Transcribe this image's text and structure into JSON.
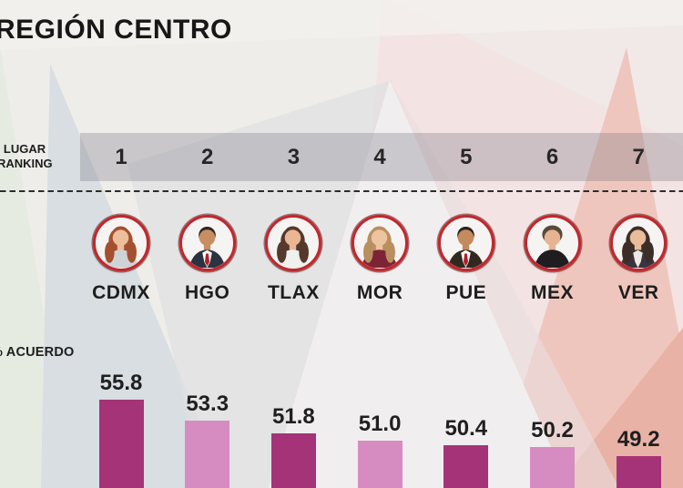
{
  "title": "REGIÓN CENTRO",
  "ranking_label": {
    "line1": "LUGAR",
    "line2": "RANKING"
  },
  "metric_label": "% ACUERDO",
  "colors": {
    "bar_dark": "#a43477",
    "bar_light": "#d78cc1",
    "ring_red": "#c1272d",
    "text": "#1d1d1d",
    "band_gray": "rgba(128,125,137,0.34)"
  },
  "chart_data": {
    "type": "bar",
    "title": "REGIÓN CENTRO",
    "ylabel": "% ACUERDO",
    "categories": [
      "CDMX",
      "HGO",
      "TLAX",
      "MOR",
      "PUE",
      "MEX",
      "VER"
    ],
    "ranking": [
      1,
      2,
      3,
      4,
      5,
      6,
      7
    ],
    "values": [
      55.8,
      53.3,
      51.8,
      51.0,
      50.4,
      50.2,
      49.2
    ],
    "value_labels": [
      "55.8",
      "53.3",
      "51.8",
      "51.0",
      "50.4",
      "50.2",
      "49.2"
    ],
    "bar_palette": [
      "dark",
      "light",
      "dark",
      "light",
      "dark",
      "light",
      "dark"
    ],
    "legend": "none",
    "grid": false,
    "note": "bars cropped at bottom edge of image"
  },
  "avatars": [
    {
      "state": "CDMX",
      "person": "female-long",
      "hair": "#a4502f",
      "skin": "#edbd9c",
      "top": "#cfd3d6"
    },
    {
      "state": "HGO",
      "person": "male-suit",
      "hair": "#2e2622",
      "skin": "#c88e63",
      "top": "#2b3240",
      "shirt": "#ffffff",
      "tie": "#b3202a"
    },
    {
      "state": "TLAX",
      "person": "female-long",
      "hair": "#55392c",
      "skin": "#eab795",
      "top": "#f0f0ee"
    },
    {
      "state": "MOR",
      "person": "female-long",
      "hair": "#b98f5f",
      "skin": "#edc3a0",
      "top": "#7c2436"
    },
    {
      "state": "PUE",
      "person": "male-suit",
      "hair": "#28211e",
      "skin": "#c58a5e",
      "top": "#31291f",
      "shirt": "#ffffff",
      "tie": "#b3202a"
    },
    {
      "state": "MEX",
      "person": "female-short",
      "hair": "#5a4a3a",
      "skin": "#e6b491",
      "top": "#201d20"
    },
    {
      "state": "VER",
      "person": "female-long",
      "hair": "#3c2e26",
      "skin": "#e9bc9b",
      "top": "#3a3340",
      "shirt": "#efe9e2"
    },
    {
      "state": "",
      "person": "cut-off",
      "hair": "#777777",
      "skin": "#f5f4f2",
      "top": "#f5f4f2"
    }
  ]
}
